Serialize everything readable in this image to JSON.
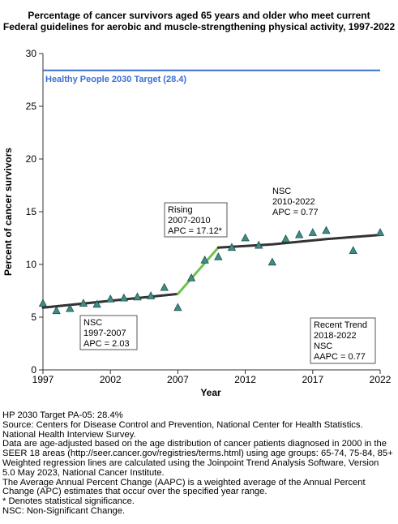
{
  "title_lines": [
    "Percentage of cancer survivors aged 65 years and older who meet current",
    "Federal guidelines for aerobic and muscle-strengthening physical activity, 1997-2022"
  ],
  "chart_data": {
    "type": "scatter",
    "xlabel": "Year",
    "ylabel": "Percent of cancer survivors",
    "xlim": [
      1997,
      2022
    ],
    "ylim": [
      0,
      30
    ],
    "xticks": [
      1997,
      2002,
      2007,
      2012,
      2017,
      2022
    ],
    "yticks": [
      0,
      5,
      10,
      15,
      20,
      25,
      30
    ],
    "grid": false,
    "target": {
      "label": "Healthy People 2030 Target (28.4)",
      "value": 28.4,
      "color": "#3b6fd6"
    },
    "observed": {
      "marker_color": "#3e8e86",
      "points": [
        {
          "x": 1997,
          "y": 6.3
        },
        {
          "x": 1998,
          "y": 5.6
        },
        {
          "x": 1999,
          "y": 5.8
        },
        {
          "x": 2000,
          "y": 6.3
        },
        {
          "x": 2001,
          "y": 6.2
        },
        {
          "x": 2002,
          "y": 6.7
        },
        {
          "x": 2003,
          "y": 6.8
        },
        {
          "x": 2004,
          "y": 6.9
        },
        {
          "x": 2005,
          "y": 7.0
        },
        {
          "x": 2006,
          "y": 7.8
        },
        {
          "x": 2007,
          "y": 5.9
        },
        {
          "x": 2008,
          "y": 8.7
        },
        {
          "x": 2009,
          "y": 10.4
        },
        {
          "x": 2010,
          "y": 10.7
        },
        {
          "x": 2011,
          "y": 11.6
        },
        {
          "x": 2012,
          "y": 12.5
        },
        {
          "x": 2013,
          "y": 11.8
        },
        {
          "x": 2014,
          "y": 10.2
        },
        {
          "x": 2015,
          "y": 12.4
        },
        {
          "x": 2016,
          "y": 12.8
        },
        {
          "x": 2017,
          "y": 13.0
        },
        {
          "x": 2018,
          "y": 13.2
        },
        {
          "x": 2020,
          "y": 11.3
        },
        {
          "x": 2022,
          "y": 13.0
        }
      ]
    },
    "trend_segments": [
      {
        "name": "NSC 1997-2007",
        "color": "#333333",
        "points": [
          [
            1997,
            5.9
          ],
          [
            2007,
            7.2
          ]
        ]
      },
      {
        "name": "Rising 2007-2010",
        "color": "#6cc24a",
        "points": [
          [
            2007,
            7.2
          ],
          [
            2010,
            11.6
          ]
        ]
      },
      {
        "name": "NSC 2010-2022",
        "color": "#333333",
        "points": [
          [
            2010,
            11.6
          ],
          [
            2014,
            11.9
          ],
          [
            2018,
            12.4
          ],
          [
            2022,
            12.8
          ]
        ]
      }
    ],
    "annotations": [
      {
        "lines": [
          "NSC",
          "1997-2007",
          "APC =  2.03"
        ]
      },
      {
        "lines": [
          "Rising",
          "2007-2010",
          "APC = 17.12*"
        ]
      },
      {
        "lines": [
          "NSC",
          "2010-2022",
          "APC =  0.77"
        ]
      },
      {
        "lines": [
          "Recent Trend",
          "2018-2022",
          "NSC",
          "AAPC =  0.77"
        ]
      }
    ]
  },
  "footnotes": [
    "HP 2030 Target PA-05: 28.4%",
    "Source: Centers for Disease Control and Prevention, National Center for Health Statistics.",
    "National Health Interview Survey.",
    "Data are age-adjusted based on the age distribution of cancer patients diagnosed in 2000 in the",
    "SEER 18 areas (http://seer.cancer.gov/registries/terms.html) using age groups: 65-74, 75-84, 85+",
    "Weighted regression lines are calculated using the Joinpoint Trend Analysis Software, Version",
    "5.0 May 2023, National Cancer Institute.",
    "The Average Annual Percent Change (AAPC) is a weighted average of the Annual Percent",
    "Change (APC) estimates that occur over the specified year range.",
    "* Denotes statistical significance.",
    "NSC: Non-Significant Change."
  ]
}
